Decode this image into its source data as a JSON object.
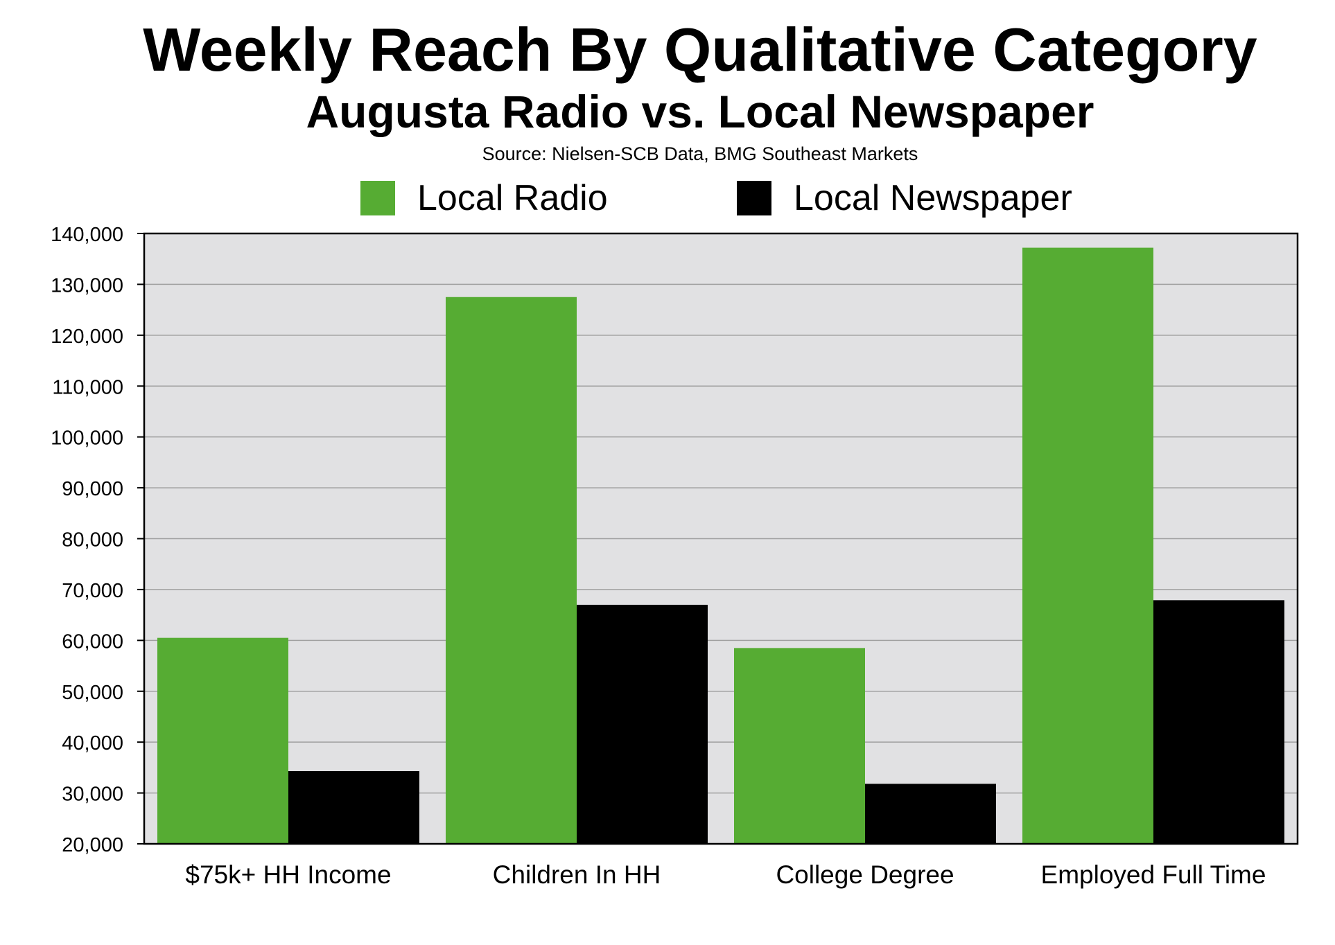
{
  "chart_data": {
    "type": "bar",
    "title": "Weekly Reach By Qualitative Category",
    "subtitle": "Augusta Radio vs. Local Newspaper",
    "source": "Source: Nielsen-SCB Data, BMG Southeast Markets",
    "categories": [
      "$75k+ HH Income",
      "Children In HH",
      "College Degree",
      "Employed Full Time"
    ],
    "series": [
      {
        "name": "Local Radio",
        "color": "#56ac33",
        "values": [
          60500,
          127500,
          58500,
          137200
        ]
      },
      {
        "name": "Local Newspaper",
        "color": "#000000",
        "values": [
          34300,
          67000,
          31800,
          67900
        ]
      }
    ],
    "ylim": [
      20000,
      140000
    ],
    "yticks": [
      20000,
      30000,
      40000,
      50000,
      60000,
      70000,
      80000,
      90000,
      100000,
      110000,
      120000,
      130000,
      140000
    ],
    "ytick_labels": [
      "20,000",
      "30,000",
      "40,000",
      "50,000",
      "60,000",
      "70,000",
      "80,000",
      "90,000",
      "100,000",
      "110,000",
      "120,000",
      "130,000",
      "140,000"
    ],
    "xlabel": "",
    "ylabel": "",
    "grid": true,
    "legend_position": "top",
    "plot_background": "#e1e1e3",
    "grid_color": "#a0a0a0"
  }
}
